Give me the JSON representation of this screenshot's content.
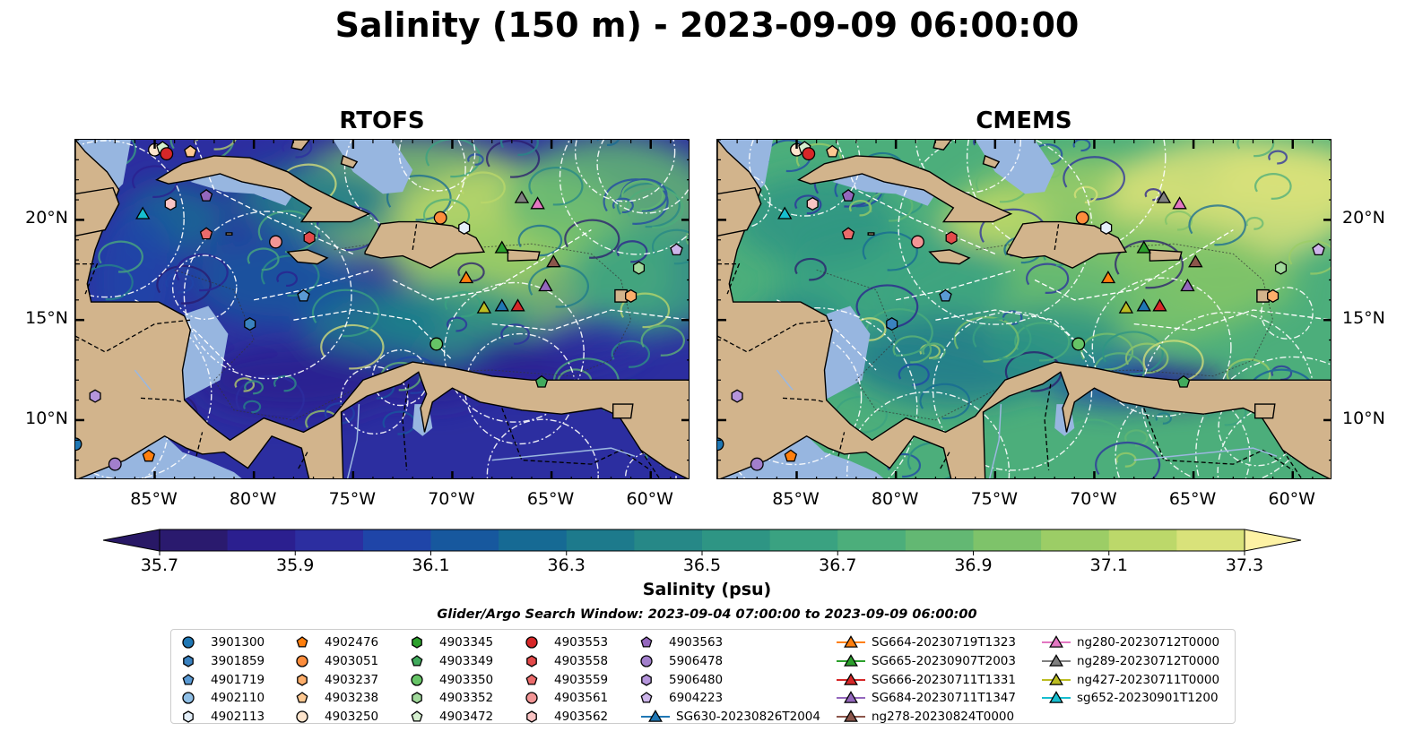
{
  "title": "Salinity (150 m) - 2023-09-09 06:00:00",
  "panels": [
    {
      "id": "rtofs",
      "title": "RTOFS"
    },
    {
      "id": "cmems",
      "title": "CMEMS"
    }
  ],
  "axes": {
    "lon_range": [
      -89,
      -58
    ],
    "lat_range": [
      7,
      24
    ],
    "lon_ticks": [
      {
        "value": -85,
        "label": "85°W"
      },
      {
        "value": -80,
        "label": "80°W"
      },
      {
        "value": -75,
        "label": "75°W"
      },
      {
        "value": -70,
        "label": "70°W"
      },
      {
        "value": -65,
        "label": "65°W"
      },
      {
        "value": -60,
        "label": "60°W"
      }
    ],
    "lat_ticks": [
      {
        "value": 20,
        "label": "20°N"
      },
      {
        "value": 15,
        "label": "15°N"
      },
      {
        "value": 10,
        "label": "10°N"
      }
    ]
  },
  "colorbar": {
    "label": "Salinity (psu)",
    "range": [
      35.7,
      37.3
    ],
    "ticks": [
      "35.7",
      "35.9",
      "36.1",
      "36.3",
      "36.5",
      "36.7",
      "36.9",
      "37.1",
      "37.3"
    ],
    "colors": [
      "#2a1a6e",
      "#2b1f8f",
      "#2c2ea0",
      "#1f45a8",
      "#17589e",
      "#166a94",
      "#1d7a8c",
      "#268887",
      "#2e9584",
      "#3aa281",
      "#4cae7b",
      "#63b873",
      "#7ec36a",
      "#9ccd66",
      "#bcd86a",
      "#d9e27a"
    ],
    "extend_low_color": "#281866",
    "extend_high_color": "#fdf2a4"
  },
  "colors": {
    "land": "#d2b48c",
    "shelf": "#97b6e0",
    "background": "#ffffff"
  },
  "search_window": "Glider/Argo Search Window: 2023-09-04 07:00:00 to 2023-09-09 06:00:00",
  "legend": {
    "items": [
      {
        "label": "3901300",
        "marker": "circle",
        "color": "#1f77b4"
      },
      {
        "label": "3901859",
        "marker": "hexagon",
        "color": "#3a82c0"
      },
      {
        "label": "4901719",
        "marker": "pentagon",
        "color": "#5a9ad4"
      },
      {
        "label": "4902110",
        "marker": "circle",
        "color": "#8fbfe6"
      },
      {
        "label": "4902113",
        "marker": "hexagon",
        "color": "#e4eff9"
      },
      {
        "label": "4902476",
        "marker": "pentagon",
        "color": "#ff7f0e"
      },
      {
        "label": "4903051",
        "marker": "circle",
        "color": "#fd8d3c"
      },
      {
        "label": "4903237",
        "marker": "hexagon",
        "color": "#fdae6b"
      },
      {
        "label": "4903238",
        "marker": "pentagon",
        "color": "#fdc891"
      },
      {
        "label": "4903250",
        "marker": "circle",
        "color": "#fde4cc"
      },
      {
        "label": "4903345",
        "marker": "hexagon",
        "color": "#2ca02c"
      },
      {
        "label": "4903349",
        "marker": "pentagon",
        "color": "#41ab5d"
      },
      {
        "label": "4903350",
        "marker": "circle",
        "color": "#66c466"
      },
      {
        "label": "4903352",
        "marker": "hexagon",
        "color": "#a1d99b"
      },
      {
        "label": "4903472",
        "marker": "pentagon",
        "color": "#d5efcf"
      },
      {
        "label": "4903553",
        "marker": "circle",
        "color": "#d62728"
      },
      {
        "label": "4903558",
        "marker": "hexagon",
        "color": "#e34a4a"
      },
      {
        "label": "4903559",
        "marker": "pentagon",
        "color": "#eb6b6b"
      },
      {
        "label": "4903561",
        "marker": "circle",
        "color": "#f29595"
      },
      {
        "label": "4903562",
        "marker": "hexagon",
        "color": "#fac4c4"
      },
      {
        "label": "4903563",
        "marker": "pentagon",
        "color": "#9467bd"
      },
      {
        "label": "5906478",
        "marker": "circle",
        "color": "#a27fcc"
      },
      {
        "label": "5906480",
        "marker": "hexagon",
        "color": "#b595dc"
      },
      {
        "label": "6904223",
        "marker": "pentagon",
        "color": "#cdb5ea"
      },
      {
        "label": "SG630-20230826T2004",
        "marker": "triangle",
        "color": "#1f77b4"
      },
      {
        "label": "SG664-20230719T1323",
        "marker": "triangle",
        "color": "#ff7f0e"
      },
      {
        "label": "SG665-20230907T2003",
        "marker": "triangle",
        "color": "#2ca02c"
      },
      {
        "label": "SG666-20230711T1331",
        "marker": "triangle",
        "color": "#d62728"
      },
      {
        "label": "SG684-20230711T1347",
        "marker": "triangle",
        "color": "#9467bd"
      },
      {
        "label": "ng278-20230824T0000",
        "marker": "triangle",
        "color": "#8c564b"
      },
      {
        "label": "ng280-20230712T0000",
        "marker": "triangle",
        "color": "#e377c2"
      },
      {
        "label": "ng289-20230712T0000",
        "marker": "triangle",
        "color": "#7f7f7f"
      },
      {
        "label": "ng427-20230711T0000",
        "marker": "triangle",
        "color": "#bcbd22"
      },
      {
        "label": "sg652-20230901T1200",
        "marker": "triangle",
        "color": "#17becf"
      }
    ]
  },
  "observations": [
    {
      "lon": -85.0,
      "lat": 23.5,
      "marker": "circle",
      "color": "#fde4cc"
    },
    {
      "lon": -84.6,
      "lat": 23.6,
      "marker": "pentagon",
      "color": "#d5efcf"
    },
    {
      "lon": -84.4,
      "lat": 23.3,
      "marker": "circle",
      "color": "#d62728"
    },
    {
      "lon": -83.2,
      "lat": 23.4,
      "marker": "pentagon",
      "color": "#fdc891"
    },
    {
      "lon": -84.2,
      "lat": 20.8,
      "marker": "hexagon",
      "color": "#fac4c4"
    },
    {
      "lon": -82.4,
      "lat": 21.2,
      "marker": "pentagon",
      "color": "#9467bd"
    },
    {
      "lon": -82.4,
      "lat": 19.3,
      "marker": "pentagon",
      "color": "#eb6b6b"
    },
    {
      "lon": -78.9,
      "lat": 18.9,
      "marker": "circle",
      "color": "#f29595"
    },
    {
      "lon": -77.2,
      "lat": 19.1,
      "marker": "hexagon",
      "color": "#e34a4a"
    },
    {
      "lon": -77.5,
      "lat": 16.2,
      "marker": "pentagon",
      "color": "#5a9ad4"
    },
    {
      "lon": -80.2,
      "lat": 14.8,
      "marker": "hexagon",
      "color": "#3a82c0"
    },
    {
      "lon": -88.0,
      "lat": 11.2,
      "marker": "hexagon",
      "color": "#b595dc"
    },
    {
      "lon": -89.0,
      "lat": 8.8,
      "marker": "circle",
      "color": "#1f77b4"
    },
    {
      "lon": -87.0,
      "lat": 7.8,
      "marker": "circle",
      "color": "#a27fcc"
    },
    {
      "lon": -85.3,
      "lat": 8.2,
      "marker": "pentagon",
      "color": "#ff7f0e"
    },
    {
      "lon": -70.6,
      "lat": 20.1,
      "marker": "circle",
      "color": "#fd8d3c"
    },
    {
      "lon": -69.4,
      "lat": 19.6,
      "marker": "hexagon",
      "color": "#e4eff9"
    },
    {
      "lon": -70.8,
      "lat": 13.8,
      "marker": "circle",
      "color": "#66c466"
    },
    {
      "lon": -65.5,
      "lat": 11.9,
      "marker": "pentagon",
      "color": "#41ab5d"
    },
    {
      "lon": -60.6,
      "lat": 17.6,
      "marker": "hexagon",
      "color": "#a1d99b"
    },
    {
      "lon": -58.7,
      "lat": 18.5,
      "marker": "pentagon",
      "color": "#cdb5ea"
    },
    {
      "lon": -61.0,
      "lat": 16.2,
      "marker": "hexagon",
      "color": "#fdae6b"
    },
    {
      "lon": -85.6,
      "lat": 20.3,
      "marker": "triangle",
      "color": "#17becf"
    },
    {
      "lon": -66.5,
      "lat": 21.1,
      "marker": "triangle",
      "color": "#7f7f7f"
    },
    {
      "lon": -65.7,
      "lat": 20.8,
      "marker": "triangle",
      "color": "#e377c2"
    },
    {
      "lon": -67.5,
      "lat": 18.6,
      "marker": "triangle",
      "color": "#2ca02c"
    },
    {
      "lon": -64.9,
      "lat": 17.9,
      "marker": "triangle",
      "color": "#8c564b"
    },
    {
      "lon": -69.3,
      "lat": 17.1,
      "marker": "triangle",
      "color": "#ff7f0e"
    },
    {
      "lon": -65.3,
      "lat": 16.7,
      "marker": "triangle",
      "color": "#9467bd"
    },
    {
      "lon": -68.4,
      "lat": 15.6,
      "marker": "triangle",
      "color": "#bcbd22"
    },
    {
      "lon": -67.5,
      "lat": 15.7,
      "marker": "triangle",
      "color": "#1f77b4"
    },
    {
      "lon": -66.7,
      "lat": 15.7,
      "marker": "triangle",
      "color": "#d62728"
    }
  ]
}
